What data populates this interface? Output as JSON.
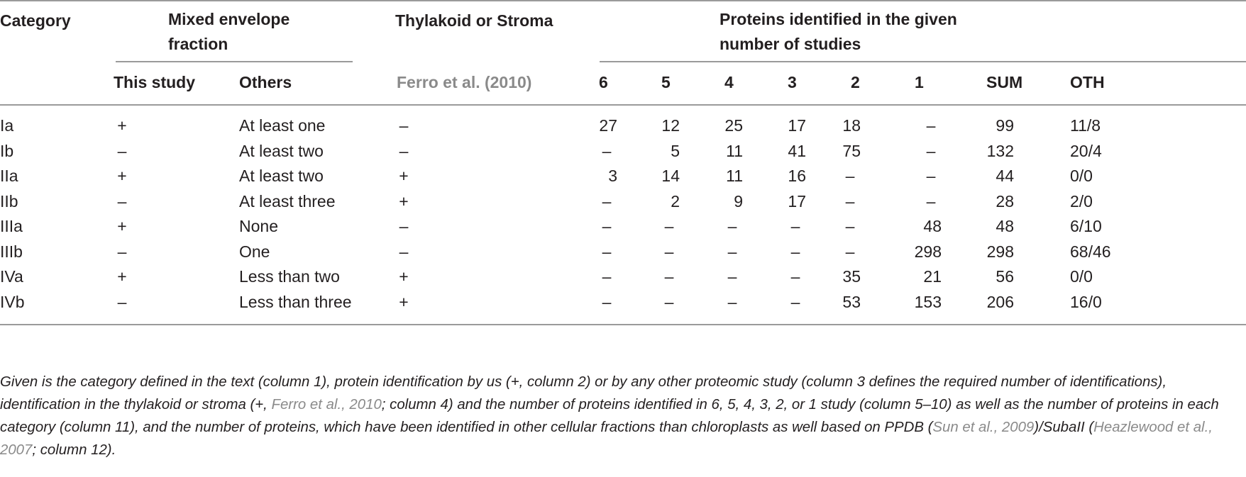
{
  "header": {
    "category": "Category",
    "mixed_envelope": "Mixed envelope",
    "mixed_envelope_2": "fraction",
    "thylakoid_stroma": "Thylakoid or Stroma",
    "proteins_identified": "Proteins identified in the given",
    "proteins_identified_2": "number of studies",
    "this_study": "This study",
    "others": "Others",
    "ferro": "Ferro et al. (2010)",
    "col6": "6",
    "col5": "5",
    "col4": "4",
    "col3": "3",
    "col2": "2",
    "col1": "1",
    "sum": "SUM",
    "oth": "OTH"
  },
  "rows": [
    {
      "cat": "Ia",
      "this": "+",
      "others": "At least one",
      "ts": "–",
      "n6": "27",
      "n5": "12",
      "n4": "25",
      "n3": "17",
      "n2": "18",
      "n1": "–",
      "sum": "99",
      "oth": "11/8"
    },
    {
      "cat": "Ib",
      "this": "–",
      "others": "At least two",
      "ts": "–",
      "n6": "–",
      "n5": "5",
      "n4": "11",
      "n3": "41",
      "n2": "75",
      "n1": "–",
      "sum": "132",
      "oth": "20/4"
    },
    {
      "cat": "IIa",
      "this": "+",
      "others": "At least two",
      "ts": "+",
      "n6": "3",
      "n5": "14",
      "n4": "11",
      "n3": "16",
      "n2": "–",
      "n1": "–",
      "sum": "44",
      "oth": "0/0"
    },
    {
      "cat": "IIb",
      "this": "–",
      "others": "At least three",
      "ts": "+",
      "n6": "–",
      "n5": "2",
      "n4": "9",
      "n3": "17",
      "n2": "–",
      "n1": "–",
      "sum": "28",
      "oth": "2/0"
    },
    {
      "cat": "IIIa",
      "this": "+",
      "others": "None",
      "ts": "–",
      "n6": "–",
      "n5": "–",
      "n4": "–",
      "n3": "–",
      "n2": "–",
      "n1": "48",
      "sum": "48",
      "oth": "6/10"
    },
    {
      "cat": "IIIb",
      "this": "–",
      "others": "One",
      "ts": "–",
      "n6": "–",
      "n5": "–",
      "n4": "–",
      "n3": "–",
      "n2": "–",
      "n1": "298",
      "sum": "298",
      "oth": "68/46"
    },
    {
      "cat": "IVa",
      "this": "+",
      "others": "Less than two",
      "ts": "+",
      "n6": "–",
      "n5": "–",
      "n4": "–",
      "n3": "–",
      "n2": "35",
      "n1": "21",
      "sum": "56",
      "oth": "0/0"
    },
    {
      "cat": "IVb",
      "this": "–",
      "others": "Less than three",
      "ts": "+",
      "n6": "–",
      "n5": "–",
      "n4": "–",
      "n3": "–",
      "n2": "53",
      "n1": "153",
      "sum": "206",
      "oth": "16/0"
    }
  ],
  "caption": {
    "p1": "Given is the category defined in the text (column 1), protein identification by us (+, column 2) or by any other proteomic study (column 3 defines the required number of identifications), identification in the thylakoid or stroma (+, ",
    "ref1": "Ferro et al., 2010",
    "p2": "; column 4) and the number of proteins identified in 6, 5, 4, 3, 2, or 1 study (column 5–10) as well as the number of proteins in each category (column 11), and the number of proteins, which have been identified in other cellular fractions than chloroplasts as well based on PPDB (",
    "ref2": "Sun et al., 2009",
    "p3": ")/SubaII (",
    "ref3": "Heazlewood et al., 2007",
    "p4": "; column 12)."
  }
}
